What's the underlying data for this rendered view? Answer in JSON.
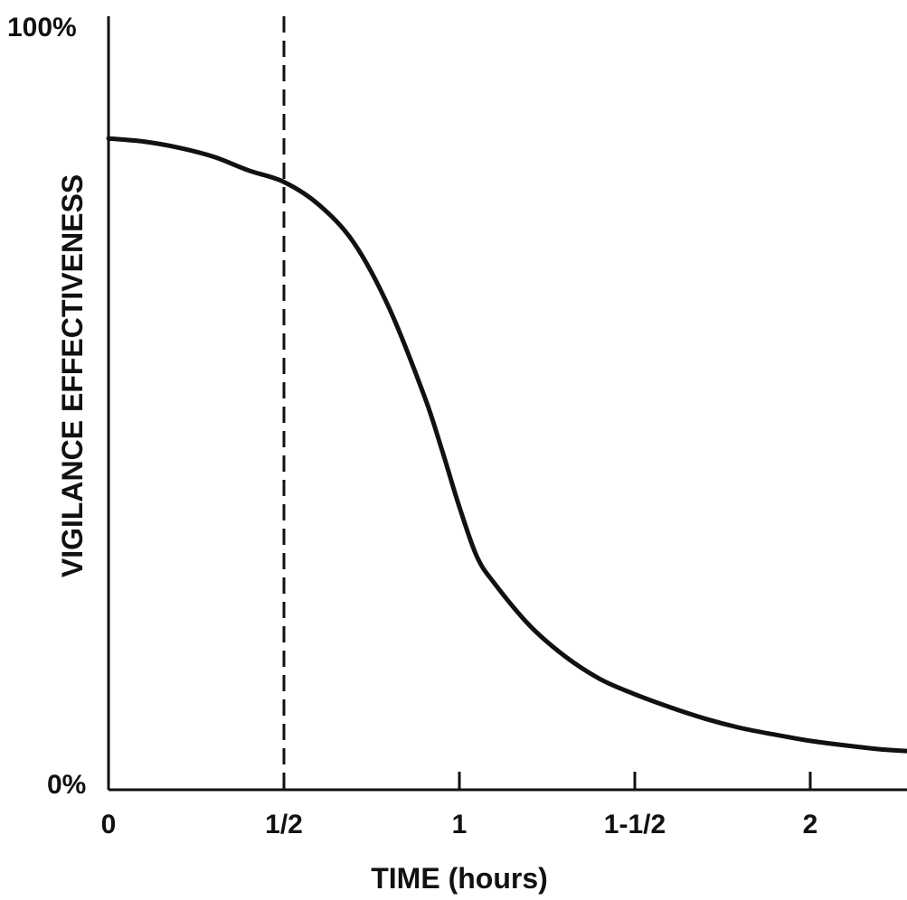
{
  "chart_data": {
    "type": "line",
    "title": "",
    "xlabel": "TIME (hours)",
    "ylabel": "VIGILANCE EFFECTIVENESS",
    "xlim": [
      0,
      2.3
    ],
    "ylim": [
      0,
      100
    ],
    "x_ticks": [
      0,
      0.5,
      1,
      1.5,
      2
    ],
    "x_tick_labels": [
      "0",
      "1/2",
      "1",
      "1-1/2",
      "2"
    ],
    "y_tick_labels": [
      "0%",
      "100%"
    ],
    "grid": false,
    "legend": "none",
    "reference_line": {
      "x": 0.5,
      "style": "dashed"
    },
    "series": [
      {
        "x": [
          0,
          0.1,
          0.2,
          0.3,
          0.4,
          0.5,
          0.6,
          0.7,
          0.8,
          0.9,
          0.95,
          1.0,
          1.05,
          1.1,
          1.2,
          1.3,
          1.4,
          1.5,
          1.6,
          1.7,
          1.8,
          1.9,
          2.0,
          2.1,
          2.2,
          2.3
        ],
        "values": [
          85.2,
          84.8,
          84.0,
          82.8,
          81.0,
          79.5,
          76.5,
          71.5,
          63.0,
          51.5,
          44.5,
          37.0,
          30.5,
          27.0,
          21.5,
          17.5,
          14.5,
          12.5,
          10.8,
          9.3,
          8.1,
          7.2,
          6.4,
          5.8,
          5.3,
          5.0
        ]
      }
    ]
  },
  "colors": {
    "line": "#111111",
    "background": "#ffffff"
  }
}
